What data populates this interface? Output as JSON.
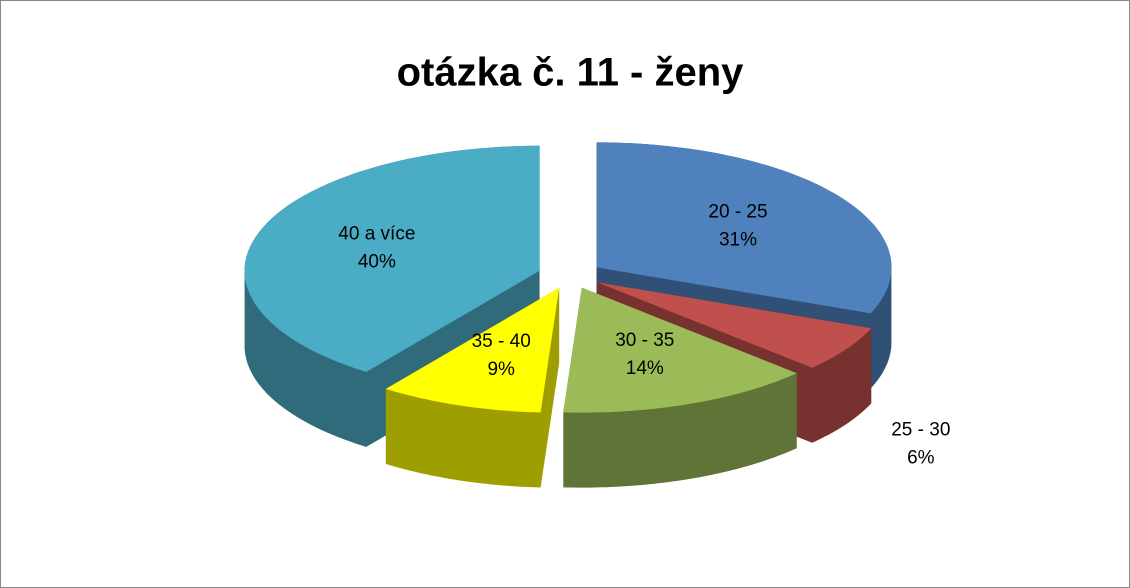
{
  "chart_data": {
    "type": "pie",
    "title": "otázka č. 11 - ženy",
    "categories": [
      "20 - 25",
      "25 - 30",
      "30 - 35",
      "35 - 40",
      "40 a více"
    ],
    "values": [
      31,
      6,
      14,
      9,
      40
    ],
    "value_labels": [
      "31%",
      "6%",
      "14%",
      "9%",
      "40%"
    ],
    "colors": [
      "#4f81bd",
      "#c0504d",
      "#9bbb59",
      "#ffff00",
      "#4bacc6"
    ]
  }
}
